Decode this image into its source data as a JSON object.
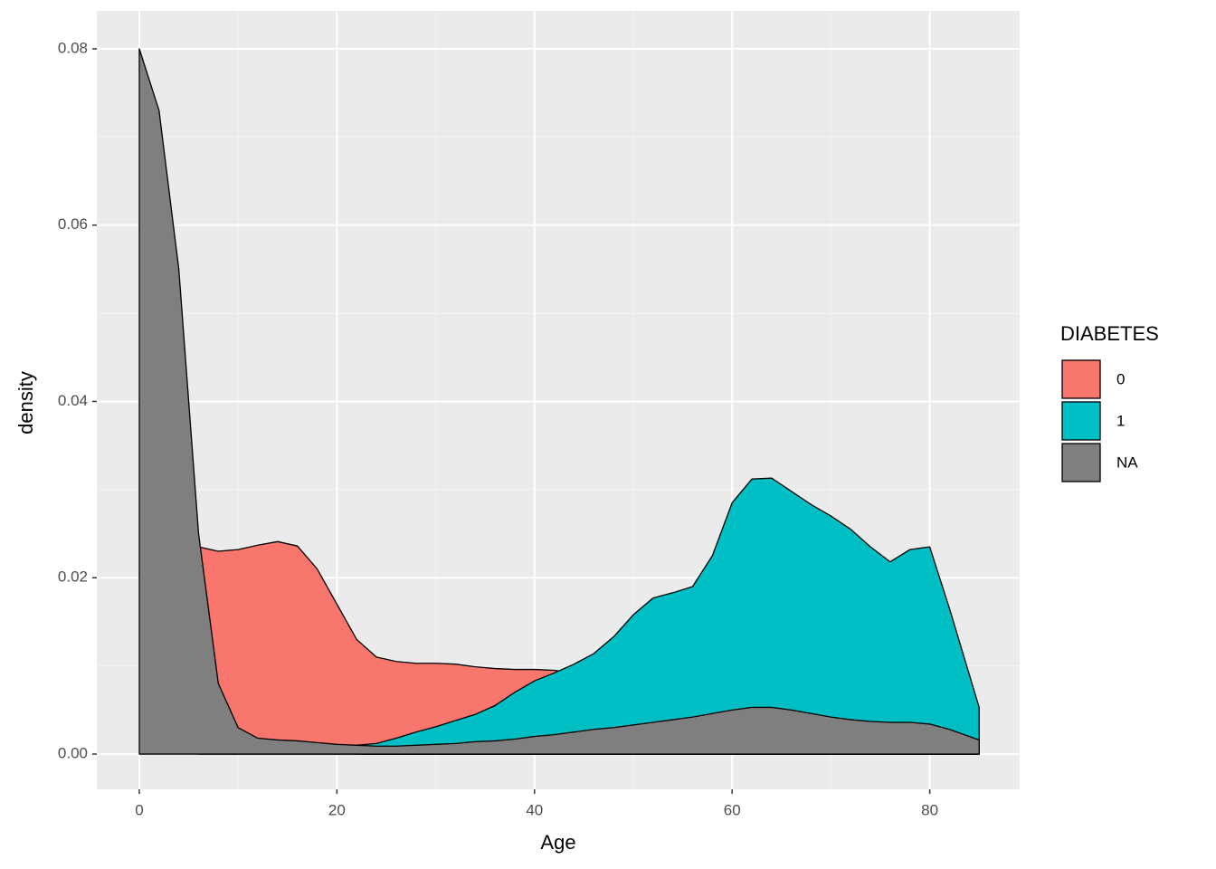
{
  "chart_data": {
    "type": "density",
    "x_label": "Age",
    "y_label": "density",
    "legend_title": "DIABETES",
    "legend": "right",
    "x": [
      0,
      2,
      4,
      6,
      8,
      10,
      12,
      14,
      16,
      18,
      20,
      22,
      24,
      26,
      28,
      30,
      32,
      34,
      36,
      38,
      40,
      42,
      44,
      46,
      48,
      50,
      52,
      54,
      56,
      58,
      60,
      62,
      64,
      66,
      68,
      70,
      72,
      74,
      76,
      78,
      80,
      82,
      85
    ],
    "series": [
      {
        "name": "0",
        "color": "#f8766d",
        "values": [
          null,
          null,
          null,
          0.0235,
          0.023,
          0.0232,
          0.0237,
          0.0241,
          0.0236,
          0.021,
          0.017,
          0.013,
          0.011,
          0.0105,
          0.0103,
          0.0103,
          0.0102,
          0.0099,
          0.0097,
          0.0096,
          0.0096,
          0.0095,
          0.0092,
          0.009,
          0.0085,
          0.008,
          0.0075,
          0.007,
          0.0065,
          0.006,
          0.0055,
          0.005,
          0.0045,
          0.004,
          0.0035,
          0.003,
          0.0028,
          0.0025,
          0.0022,
          0.002,
          0.0018,
          0.0015,
          0.001
        ]
      },
      {
        "name": "1",
        "color": "#00bfc4",
        "values": [
          null,
          null,
          null,
          null,
          null,
          null,
          null,
          null,
          null,
          null,
          null,
          0.001,
          0.0012,
          0.0018,
          0.0025,
          0.0031,
          0.0038,
          0.0045,
          0.0055,
          0.007,
          0.0083,
          0.0092,
          0.0102,
          0.0114,
          0.0133,
          0.0158,
          0.0177,
          0.0183,
          0.019,
          0.0225,
          0.0285,
          0.0312,
          0.0313,
          0.0298,
          0.0283,
          0.027,
          0.0255,
          0.0235,
          0.0218,
          0.0232,
          0.0235,
          0.0165,
          0.0053
        ]
      },
      {
        "name": "NA",
        "color": "#7f7f7f",
        "values": [
          0.08,
          0.073,
          0.055,
          0.025,
          0.008,
          0.003,
          0.0018,
          0.0016,
          0.0015,
          0.0013,
          0.0011,
          0.001,
          0.0009,
          0.0009,
          0.001,
          0.0011,
          0.0012,
          0.0014,
          0.0015,
          0.0017,
          0.002,
          0.0022,
          0.0025,
          0.0028,
          0.003,
          0.0033,
          0.0036,
          0.0039,
          0.0042,
          0.0046,
          0.005,
          0.0053,
          0.0053,
          0.005,
          0.0046,
          0.0042,
          0.0039,
          0.0037,
          0.0036,
          0.0036,
          0.0034,
          0.0028,
          0.0016
        ]
      }
    ],
    "xlim": [
      -4.3,
      89.1
    ],
    "xticks": [
      0,
      20,
      40,
      60,
      80
    ],
    "ylim": [
      -0.004,
      0.0843
    ],
    "yticks": [
      {
        "value": 0,
        "label": "0.00"
      },
      {
        "value": 0.02,
        "label": "0.02"
      },
      {
        "value": 0.04,
        "label": "0.04"
      },
      {
        "value": 0.06,
        "label": "0.06"
      },
      {
        "value": 0.08,
        "label": "0.08"
      }
    ],
    "grid": true
  }
}
